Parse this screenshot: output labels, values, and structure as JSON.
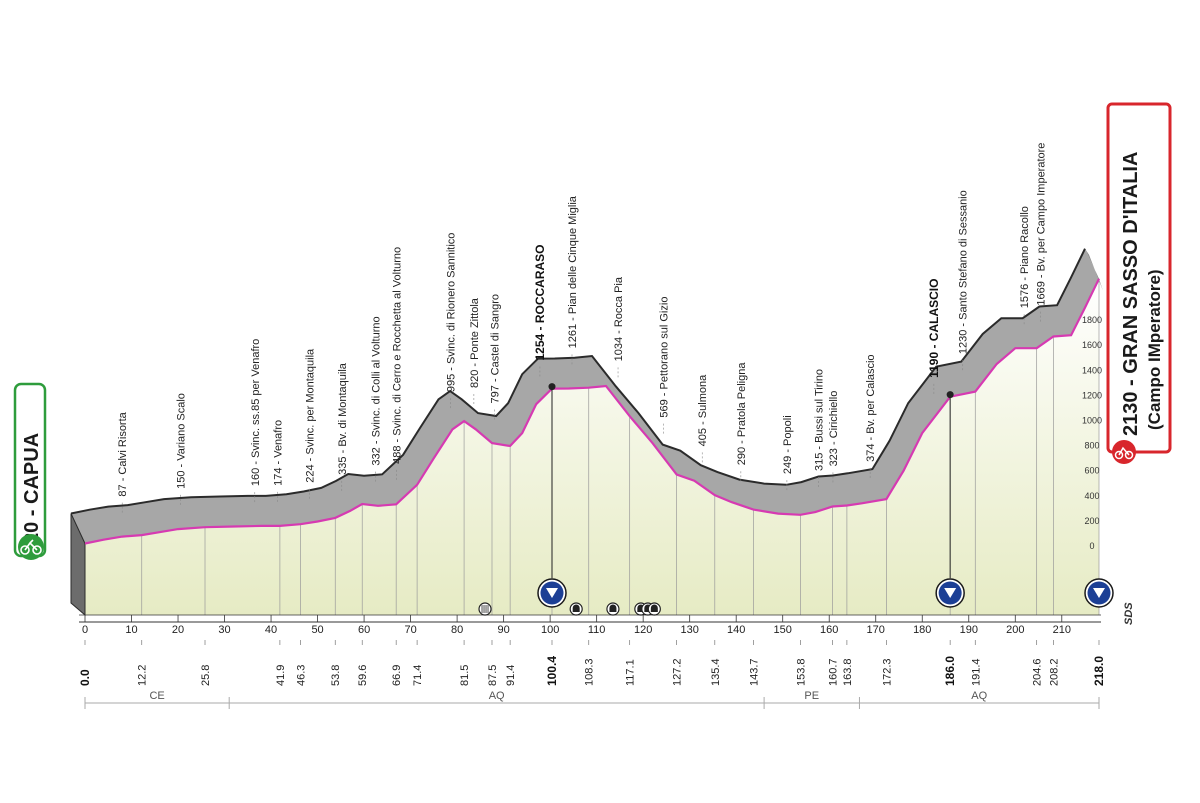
{
  "chart_data": {
    "type": "area",
    "title": "",
    "xlabel": "",
    "ylabel": "",
    "xlim": [
      0,
      218
    ],
    "ylim": [
      -200,
      2000
    ],
    "y_ticks": [
      0,
      200,
      400,
      600,
      800,
      1000,
      1200,
      1400,
      1600,
      1800
    ],
    "x_ticks": [
      0,
      10,
      20,
      30,
      40,
      50,
      60,
      70,
      80,
      90,
      100,
      110,
      120,
      130,
      140,
      150,
      160,
      170,
      180,
      190,
      200,
      210
    ],
    "start": {
      "label": "20 - CAPUA",
      "km": 0,
      "altitude": 20
    },
    "finish": {
      "label": "2130 - GRAN SASSO D'ITALIA",
      "sublabel": "(Campo IMperatore)",
      "km": 218,
      "altitude": 2130
    },
    "profile": [
      {
        "km": 0,
        "alt": 20
      },
      {
        "km": 4,
        "alt": 50
      },
      {
        "km": 8,
        "alt": 75
      },
      {
        "km": 12.2,
        "alt": 87
      },
      {
        "km": 16,
        "alt": 110
      },
      {
        "km": 20,
        "alt": 135
      },
      {
        "km": 25.8,
        "alt": 150
      },
      {
        "km": 32,
        "alt": 155
      },
      {
        "km": 38,
        "alt": 160
      },
      {
        "km": 41.9,
        "alt": 160
      },
      {
        "km": 46.3,
        "alt": 174
      },
      {
        "km": 50,
        "alt": 195
      },
      {
        "km": 53.8,
        "alt": 224
      },
      {
        "km": 57,
        "alt": 280
      },
      {
        "km": 59.6,
        "alt": 335
      },
      {
        "km": 63,
        "alt": 320
      },
      {
        "km": 66.9,
        "alt": 332
      },
      {
        "km": 71.4,
        "alt": 488
      },
      {
        "km": 75,
        "alt": 700
      },
      {
        "km": 79,
        "alt": 930
      },
      {
        "km": 81.5,
        "alt": 995
      },
      {
        "km": 84,
        "alt": 930
      },
      {
        "km": 87.5,
        "alt": 820
      },
      {
        "km": 91.4,
        "alt": 797
      },
      {
        "km": 94,
        "alt": 900
      },
      {
        "km": 97,
        "alt": 1130
      },
      {
        "km": 100.4,
        "alt": 1254
      },
      {
        "km": 104,
        "alt": 1255
      },
      {
        "km": 108.3,
        "alt": 1261
      },
      {
        "km": 112,
        "alt": 1275
      },
      {
        "km": 117.1,
        "alt": 1034
      },
      {
        "km": 122,
        "alt": 820
      },
      {
        "km": 127.2,
        "alt": 569
      },
      {
        "km": 131,
        "alt": 520
      },
      {
        "km": 135.4,
        "alt": 405
      },
      {
        "km": 139,
        "alt": 350
      },
      {
        "km": 143.7,
        "alt": 290
      },
      {
        "km": 149,
        "alt": 258
      },
      {
        "km": 153.8,
        "alt": 249
      },
      {
        "km": 157,
        "alt": 270
      },
      {
        "km": 160.7,
        "alt": 315
      },
      {
        "km": 163.8,
        "alt": 323
      },
      {
        "km": 167,
        "alt": 340
      },
      {
        "km": 172.3,
        "alt": 374
      },
      {
        "km": 176,
        "alt": 600
      },
      {
        "km": 180,
        "alt": 900
      },
      {
        "km": 186.0,
        "alt": 1190
      },
      {
        "km": 191.4,
        "alt": 1230
      },
      {
        "km": 196,
        "alt": 1450
      },
      {
        "km": 200,
        "alt": 1576
      },
      {
        "km": 204.6,
        "alt": 1576
      },
      {
        "km": 208.2,
        "alt": 1669
      },
      {
        "km": 212,
        "alt": 1680
      },
      {
        "km": 215,
        "alt": 1900
      },
      {
        "km": 218,
        "alt": 2130
      }
    ],
    "waypoints": [
      {
        "km": 8,
        "label": "87 - Calvi Risorta",
        "bold": false
      },
      {
        "km": 20.5,
        "label": "150 - Variano Scalo",
        "bold": false
      },
      {
        "km": 36.5,
        "label": "160 - Svinc. ss.85 per Venafro",
        "bold": false
      },
      {
        "km": 41.4,
        "label": "174 - Venafro",
        "bold": false
      },
      {
        "km": 48.3,
        "label": "224 - Svinc. per Montaquila",
        "bold": false
      },
      {
        "km": 55.2,
        "label": "335 - Bv. di Montaquila",
        "bold": false
      },
      {
        "km": 62.5,
        "label": "332 - Svinc. di Colli al Volturno",
        "bold": false
      },
      {
        "km": 67.0,
        "label": "488 - Svinc. di Cerro e Rocchetta al Volturno",
        "bold": false
      },
      {
        "km": 78.6,
        "label": "995 - Svinc. di Rionero Sannitico",
        "bold": false
      },
      {
        "km": 83.6,
        "label": "820 - Ponte Zittola",
        "bold": false
      },
      {
        "km": 88.0,
        "label": "797 - Castel di Sangro",
        "bold": false
      },
      {
        "km": 97.8,
        "label": "1254 - ROCCARASO",
        "bold": true
      },
      {
        "km": 104.7,
        "label": "1261 - Pian delle Cinque Miglia",
        "bold": false
      },
      {
        "km": 114.6,
        "label": "1034 - Rocca Pia",
        "bold": false
      },
      {
        "km": 124.4,
        "label": "569 - Pettorano sul Gizio",
        "bold": false
      },
      {
        "km": 132.7,
        "label": "405 - Sulmona",
        "bold": false
      },
      {
        "km": 141.0,
        "label": "290 - Pratola Peligna",
        "bold": false
      },
      {
        "km": 150.9,
        "label": "249 - Popoli",
        "bold": false
      },
      {
        "km": 157.7,
        "label": "315 - Bussi sul Tirino",
        "bold": false
      },
      {
        "km": 160.8,
        "label": "323 - Cirichiello",
        "bold": false
      },
      {
        "km": 168.8,
        "label": "374 - Bv. per Calascio",
        "bold": false
      },
      {
        "km": 182.5,
        "label": "1190 - CALASCIO",
        "bold": true
      },
      {
        "km": 188.7,
        "label": "1230 - Santo Stefano di Sessanio",
        "bold": false
      },
      {
        "km": 201.9,
        "label": "1576 - Piano Racollo",
        "bold": false
      },
      {
        "km": 205.4,
        "label": "1669 - Bv. per Campo Imperatore",
        "bold": false
      }
    ],
    "km_marks": [
      {
        "km": 0.0,
        "label": "0.0",
        "bold": true
      },
      {
        "km": 12.2,
        "label": "12.2",
        "bold": false
      },
      {
        "km": 25.8,
        "label": "25.8",
        "bold": false
      },
      {
        "km": 41.9,
        "label": "41.9",
        "bold": false
      },
      {
        "km": 46.3,
        "label": "46.3",
        "bold": false
      },
      {
        "km": 53.8,
        "label": "53.8",
        "bold": false
      },
      {
        "km": 59.6,
        "label": "59.6",
        "bold": false
      },
      {
        "km": 66.9,
        "label": "66.9",
        "bold": false
      },
      {
        "km": 71.4,
        "label": "71.4",
        "bold": false
      },
      {
        "km": 81.5,
        "label": "81.5",
        "bold": false
      },
      {
        "km": 87.5,
        "label": "87.5",
        "bold": false
      },
      {
        "km": 91.4,
        "label": "91.4",
        "bold": false
      },
      {
        "km": 100.4,
        "label": "100.4",
        "bold": true
      },
      {
        "km": 108.3,
        "label": "108.3",
        "bold": false
      },
      {
        "km": 117.1,
        "label": "117.1",
        "bold": false
      },
      {
        "km": 127.2,
        "label": "127.2",
        "bold": false
      },
      {
        "km": 135.4,
        "label": "135.4",
        "bold": false
      },
      {
        "km": 143.7,
        "label": "143.7",
        "bold": false
      },
      {
        "km": 153.8,
        "label": "153.8",
        "bold": false
      },
      {
        "km": 160.7,
        "label": "160.7",
        "bold": false
      },
      {
        "km": 163.8,
        "label": "163.8",
        "bold": false
      },
      {
        "km": 172.3,
        "label": "172.3",
        "bold": false
      },
      {
        "km": 186.0,
        "label": "186.0",
        "bold": true
      },
      {
        "km": 191.4,
        "label": "191.4",
        "bold": false
      },
      {
        "km": 204.6,
        "label": "204.6",
        "bold": false
      },
      {
        "km": 208.2,
        "label": "208.2",
        "bold": false
      },
      {
        "km": 218.0,
        "label": "218.0",
        "bold": true
      }
    ],
    "regions": [
      {
        "label": "CE",
        "from": 0,
        "to": 31
      },
      {
        "label": "AQ",
        "from": 31,
        "to": 146
      },
      {
        "label": "PE",
        "from": 146,
        "to": 166.5
      },
      {
        "label": "AQ",
        "from": 166.5,
        "to": 218
      }
    ],
    "sprint_markers": [
      100.4,
      186.0,
      218.0
    ],
    "icon_markers": [
      {
        "km": 86.0,
        "icon": "railway-crossing-icon"
      },
      {
        "km": 105.6,
        "icon": "tunnel-icon"
      },
      {
        "km": 113.5,
        "icon": "tunnel-icon"
      },
      {
        "km": 119.5,
        "icon": "tunnel-icon"
      },
      {
        "km": 121.0,
        "icon": "tunnel-icon"
      },
      {
        "km": 122.4,
        "icon": "tunnel-icon"
      }
    ],
    "sds_label": "SDS",
    "colors": {
      "profile_top": "#a7a7a7",
      "profile_edge": "#2b2b2b",
      "fill_bottom": "#ecefcf",
      "route_line": "#d63ab2",
      "start_green": "#2e9c3c",
      "finish_red": "#d8262c",
      "sprint_blue": "#1c3f95"
    }
  }
}
